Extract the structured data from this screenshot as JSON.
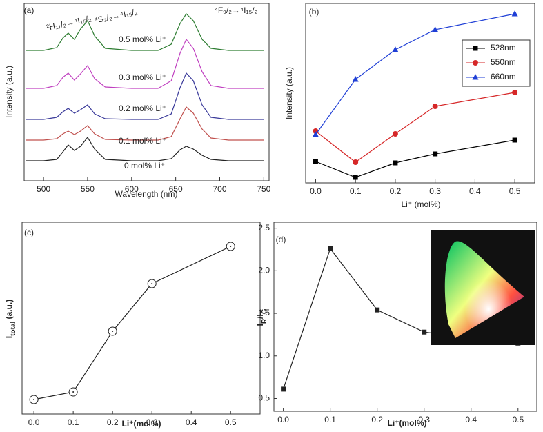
{
  "chart_data": [
    {
      "type": "line",
      "label": "(a)",
      "xlabel": "Wavelength (nm)",
      "ylabel": "Intensity (a.u.)",
      "xlim": [
        478,
        756
      ],
      "xticks": [
        500,
        550,
        600,
        650,
        700,
        750
      ],
      "ylim": [
        0,
        257
      ],
      "annotations": [
        "²H₁₁/₂→⁴I₁₅/₂",
        "⁴S₃/₂→⁴I₁₅/₂",
        "⁴F₉/₂→⁴I₁₅/₂"
      ],
      "x": [
        480,
        500,
        515,
        522,
        528,
        535,
        542,
        550,
        558,
        570,
        600,
        630,
        645,
        655,
        662,
        670,
        680,
        690,
        710,
        750
      ],
      "series": [
        {
          "name": "0 mol% Li⁺",
          "color": "#222222",
          "values": [
            29,
            29,
            31,
            42,
            52,
            44,
            50,
            63,
            46,
            31,
            29,
            29,
            32,
            45,
            50,
            46,
            37,
            31,
            29,
            29
          ]
        },
        {
          "name": "0.1 mol% Li⁺",
          "color": "#c0504d",
          "values": [
            59,
            59,
            61,
            68,
            72,
            67,
            72,
            80,
            68,
            60,
            59,
            59,
            64,
            90,
            107,
            98,
            75,
            62,
            59,
            59
          ]
        },
        {
          "name": "0.2 mol% Li⁺",
          "color": "#3a3a9a",
          "values": [
            89,
            89,
            92,
            100,
            105,
            98,
            103,
            110,
            97,
            90,
            89,
            89,
            97,
            135,
            156,
            145,
            110,
            92,
            89,
            89
          ]
        },
        {
          "name": "0.3 mol% Li⁺",
          "color": "#c040c0",
          "values": [
            134,
            134,
            138,
            150,
            156,
            146,
            155,
            167,
            148,
            136,
            134,
            134,
            145,
            185,
            205,
            192,
            158,
            138,
            134,
            134
          ]
        },
        {
          "name": "0.5 mol% Li⁺",
          "color": "#2e7d32",
          "values": [
            189,
            189,
            193,
            207,
            214,
            205,
            220,
            232,
            210,
            192,
            189,
            189,
            198,
            228,
            242,
            232,
            205,
            192,
            189,
            189
          ]
        }
      ]
    },
    {
      "type": "line",
      "label": "(b)",
      "xlabel": "Li⁺ (mol%)",
      "ylabel": "Intensity (a.u.)",
      "xlim": [
        -0.025,
        0.55
      ],
      "xticks": [
        {
          "value": 0,
          "label": "0.0"
        },
        0.1,
        0.2,
        0.3,
        0.4,
        0.5
      ],
      "ylim": [
        0,
        260
      ],
      "legend": "upper right",
      "x": [
        0,
        0.1,
        0.2,
        0.3,
        0.5
      ],
      "series": [
        {
          "name": "528nm",
          "color": "#000000",
          "marker": "square",
          "values": [
            31,
            8,
            29,
            42,
            62
          ]
        },
        {
          "name": "550nm",
          "color": "#d62728",
          "marker": "circle",
          "values": [
            75,
            30,
            71,
            111,
            131
          ]
        },
        {
          "name": "660nm",
          "color": "#1f3fd6",
          "marker": "triangle",
          "values": [
            70,
            150,
            193,
            222,
            245
          ]
        }
      ]
    },
    {
      "type": "line",
      "label": "(c)",
      "xlabel": "Li⁺(mol%)",
      "ylabel_parts": [
        {
          "text": "I"
        },
        {
          "text": "total",
          "sub": true
        },
        {
          "text": " (a.u.)"
        }
      ],
      "xlim": [
        -0.03,
        0.575
      ],
      "xticks": [
        {
          "value": 0,
          "label": "0.0"
        },
        0.1,
        0.2,
        0.3,
        0.4,
        0.5
      ],
      "ylim": [
        0,
        278
      ],
      "x": [
        0,
        0.1,
        0.2,
        0.3,
        0.5
      ],
      "series": [
        {
          "color": "#222222",
          "marker": "open-circle",
          "values": [
            21,
            32,
            120,
            189,
            243
          ]
        }
      ]
    },
    {
      "type": "line",
      "label": "(d)",
      "xlabel": "Li⁺(mol%)",
      "ylabel_parts": [
        {
          "text": "I"
        },
        {
          "text": "R",
          "sub": true
        },
        {
          "text": "/I"
        },
        {
          "text": "G",
          "sub": true
        }
      ],
      "xlim": [
        -0.02,
        0.54
      ],
      "xticks": [
        {
          "value": 0,
          "label": "0.0"
        },
        0.1,
        0.2,
        0.3,
        0.4,
        0.5
      ],
      "ylim": [
        0.35,
        2.57
      ],
      "yticks": [
        0.5,
        {
          "value": 1,
          "label": "1.0"
        },
        1.5,
        {
          "value": 2,
          "label": "2.0"
        },
        2.5
      ],
      "x": [
        0,
        0.1,
        0.2,
        0.3,
        0.5
      ],
      "series": [
        {
          "color": "#222222",
          "marker": "square",
          "values": [
            0.61,
            2.26,
            1.54,
            1.28,
            1.15
          ]
        }
      ]
    }
  ]
}
